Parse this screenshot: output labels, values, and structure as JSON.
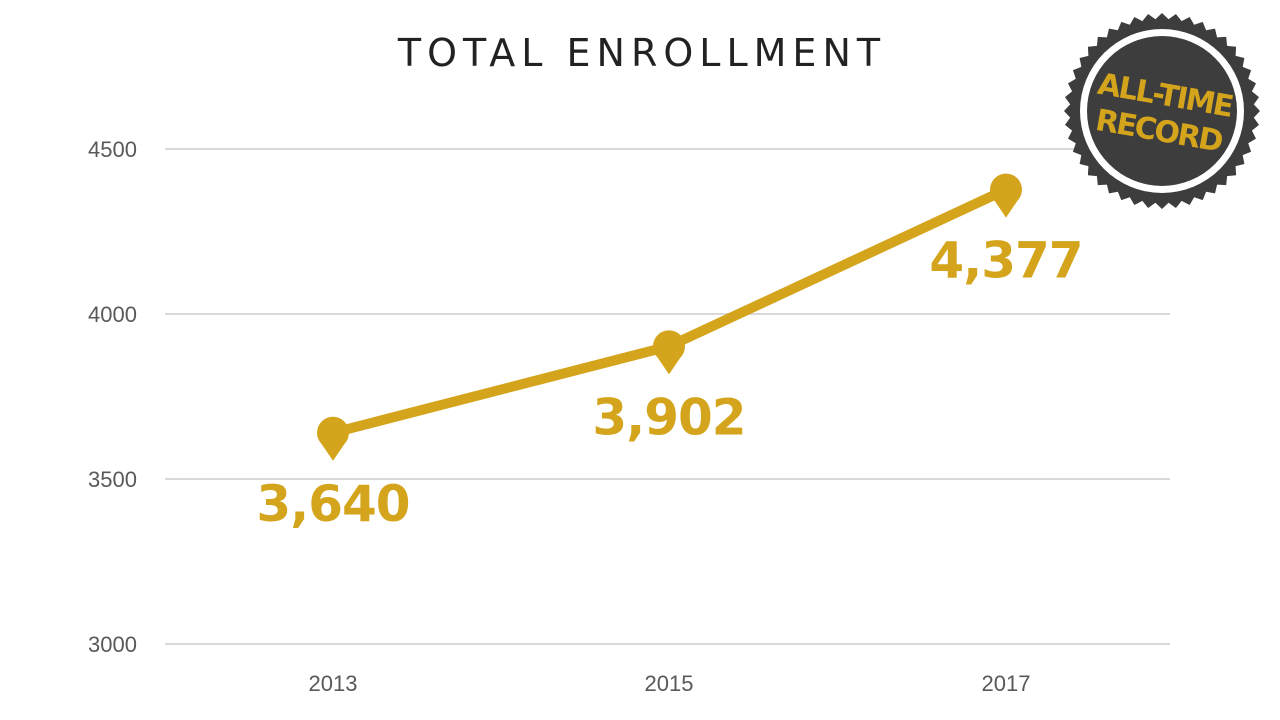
{
  "chart_data": {
    "type": "line",
    "title": "TOTAL ENROLLMENT",
    "xlabel": "",
    "ylabel": "",
    "categories": [
      "2013",
      "2015",
      "2017"
    ],
    "series": [
      {
        "values": [
          3640,
          3902,
          4377
        ],
        "data_labels": [
          "3,640",
          "3,902",
          "4,377"
        ]
      }
    ],
    "ylim": [
      3000,
      4500
    ],
    "yticks": [
      3000,
      3500,
      4000,
      4500
    ],
    "ytick_labels": [
      "3000",
      "3500",
      "4000",
      "4500"
    ],
    "grid": true,
    "legend": "none"
  },
  "badge": {
    "line1": "ALL-TIME",
    "line2": "RECORD"
  },
  "colors": {
    "series": "#d4a51c",
    "grid": "#d9d9d9",
    "badge_fill": "#3d3d3d",
    "badge_ring": "#ffffff",
    "badge_text": "#d4a51c"
  }
}
